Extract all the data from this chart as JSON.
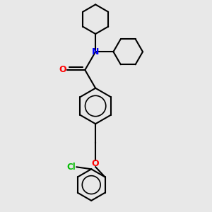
{
  "bg_color": "#e8e8e8",
  "bond_color": "#000000",
  "N_color": "#0000ff",
  "O_color": "#ff0000",
  "Cl_color": "#00bb00",
  "line_width": 1.5,
  "figsize": [
    3.0,
    3.0
  ],
  "dpi": 100,
  "xlim": [
    0,
    10
  ],
  "ylim": [
    0,
    10
  ]
}
